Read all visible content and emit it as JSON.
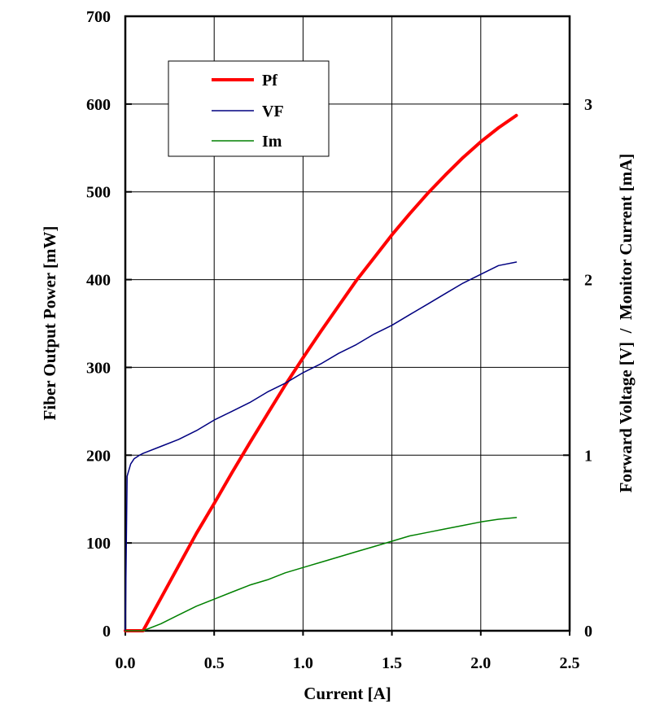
{
  "chart_data": {
    "type": "line",
    "xlabel": "Current [A]",
    "ylabel_left": "Fiber Output Power [mW]",
    "ylabel_right": "Forward Voltage [V]  /  Monitor Current [mA]",
    "xlim": [
      0,
      2.5
    ],
    "ylim_left": [
      0,
      700
    ],
    "ylim_right": [
      0,
      3.5
    ],
    "x_ticks": [
      "0.0",
      "0.5",
      "1.0",
      "1.5",
      "2.0",
      "2.5"
    ],
    "y_left_ticks": [
      "0",
      "100",
      "200",
      "300",
      "400",
      "500",
      "600",
      "700"
    ],
    "y_right_ticks": [
      "0",
      "1",
      "2",
      "3"
    ],
    "grid": true,
    "legend_position": "top-left",
    "series": [
      {
        "name": "Pf",
        "axis": "left",
        "color": "#ff0000",
        "x": [
          0,
          0.1,
          0.2,
          0.3,
          0.4,
          0.5,
          0.6,
          0.7,
          0.8,
          0.9,
          1.0,
          1.1,
          1.2,
          1.3,
          1.4,
          1.5,
          1.6,
          1.7,
          1.8,
          1.9,
          2.0,
          2.1,
          2.2
        ],
        "y": [
          0,
          0,
          37,
          74,
          111,
          145,
          180,
          214,
          247,
          280,
          311,
          341,
          370,
          399,
          425,
          451,
          475,
          498,
          519,
          539,
          557,
          573,
          587
        ]
      },
      {
        "name": "VF",
        "axis": "right",
        "color": "#000080",
        "x": [
          0,
          0.01,
          0.03,
          0.05,
          0.08,
          0.1,
          0.2,
          0.3,
          0.4,
          0.5,
          0.6,
          0.7,
          0.8,
          0.9,
          1.0,
          1.1,
          1.2,
          1.3,
          1.4,
          1.5,
          1.6,
          1.7,
          1.8,
          1.9,
          2.0,
          2.1,
          2.2
        ],
        "y": [
          0,
          0.88,
          0.95,
          0.98,
          1.0,
          1.01,
          1.05,
          1.09,
          1.14,
          1.2,
          1.25,
          1.3,
          1.36,
          1.41,
          1.47,
          1.52,
          1.58,
          1.63,
          1.69,
          1.74,
          1.8,
          1.86,
          1.92,
          1.98,
          2.03,
          2.08,
          2.1
        ]
      },
      {
        "name": "Im",
        "axis": "right",
        "color": "#008000",
        "x": [
          0,
          0.1,
          0.2,
          0.3,
          0.4,
          0.5,
          0.6,
          0.7,
          0.8,
          0.9,
          1.0,
          1.1,
          1.2,
          1.3,
          1.4,
          1.5,
          1.6,
          1.7,
          1.8,
          1.9,
          2.0,
          2.1,
          2.2
        ],
        "y": [
          0,
          0,
          0.04,
          0.09,
          0.14,
          0.18,
          0.22,
          0.26,
          0.29,
          0.33,
          0.36,
          0.39,
          0.42,
          0.45,
          0.48,
          0.51,
          0.54,
          0.56,
          0.58,
          0.6,
          0.62,
          0.635,
          0.645
        ]
      }
    ]
  }
}
